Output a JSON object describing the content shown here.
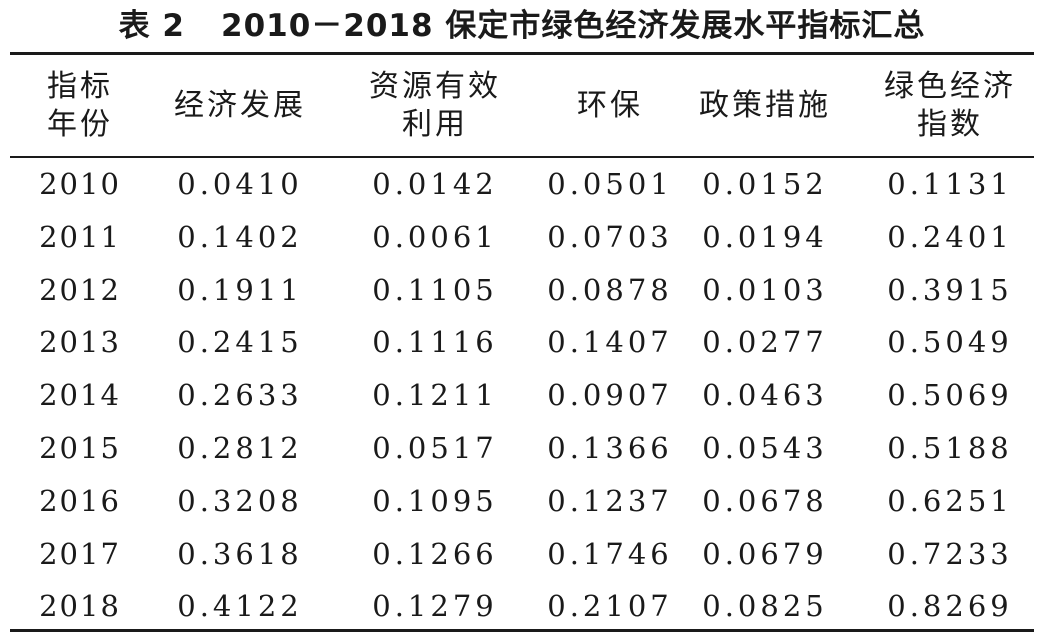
{
  "caption": {
    "label": "表 2",
    "title": "2010－2018 保定市绿色经济发展水平指标汇总"
  },
  "header": {
    "col0": [
      "指标",
      "年份"
    ],
    "col1": [
      "经济发展"
    ],
    "col2": [
      "资源有效",
      "利用"
    ],
    "col3": [
      "环保"
    ],
    "col4": [
      "政策措施"
    ],
    "col5": [
      "绿色经济",
      "指数"
    ]
  },
  "rows": [
    {
      "year": "2010",
      "econ": "0.0410",
      "resource": "0.0142",
      "env": "0.0501",
      "policy": "0.0152",
      "index": "0.1131"
    },
    {
      "year": "2011",
      "econ": "0.1402",
      "resource": "0.0061",
      "env": "0.0703",
      "policy": "0.0194",
      "index": "0.2401"
    },
    {
      "year": "2012",
      "econ": "0.1911",
      "resource": "0.1105",
      "env": "0.0878",
      "policy": "0.0103",
      "index": "0.3915"
    },
    {
      "year": "2013",
      "econ": "0.2415",
      "resource": "0.1116",
      "env": "0.1407",
      "policy": "0.0277",
      "index": "0.5049"
    },
    {
      "year": "2014",
      "econ": "0.2633",
      "resource": "0.1211",
      "env": "0.0907",
      "policy": "0.0463",
      "index": "0.5069"
    },
    {
      "year": "2015",
      "econ": "0.2812",
      "resource": "0.0517",
      "env": "0.1366",
      "policy": "0.0543",
      "index": "0.5188"
    },
    {
      "year": "2016",
      "econ": "0.3208",
      "resource": "0.1095",
      "env": "0.1237",
      "policy": "0.0678",
      "index": "0.6251"
    },
    {
      "year": "2017",
      "econ": "0.3618",
      "resource": "0.1266",
      "env": "0.1746",
      "policy": "0.0679",
      "index": "0.7233"
    },
    {
      "year": "2018",
      "econ": "0.4122",
      "resource": "0.1279",
      "env": "0.2107",
      "policy": "0.0825",
      "index": "0.8269"
    }
  ]
}
